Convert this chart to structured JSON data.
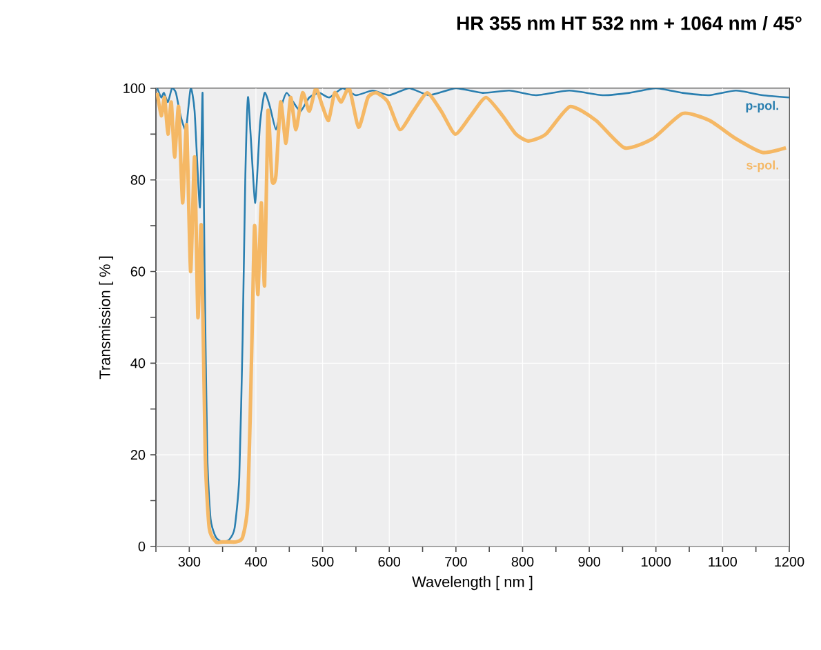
{
  "chart_data": {
    "type": "line",
    "title": "HR 355 nm HT 532 nm + 1064 nm / 45°",
    "xlabel": "Wavelength [ nm ]",
    "ylabel": "Transmission [ % ]",
    "xlim": [
      250,
      1200
    ],
    "ylim": [
      0,
      100
    ],
    "xticks": [
      {
        "value": 250,
        "label": null
      },
      300,
      {
        "value": 350,
        "label": null
      },
      400,
      {
        "value": 450,
        "label": null
      },
      500,
      {
        "value": 550,
        "label": null
      },
      600,
      {
        "value": 650,
        "label": null
      },
      700,
      {
        "value": 750,
        "label": null
      },
      800,
      {
        "value": 850,
        "label": null
      },
      900,
      {
        "value": 950,
        "label": null
      },
      1000,
      {
        "value": 1050,
        "label": null
      },
      1100,
      {
        "value": 1150,
        "label": null
      },
      1200
    ],
    "yticks": [
      0,
      {
        "value": 10,
        "label": null
      },
      20,
      {
        "value": 30,
        "label": null
      },
      40,
      {
        "value": 50,
        "label": null
      },
      60,
      {
        "value": 70,
        "label": null
      },
      80,
      {
        "value": 90,
        "label": null
      },
      100
    ],
    "grid": true,
    "marker": "none",
    "line_style": "solid",
    "series": [
      {
        "name": "p-pol.",
        "color": "#2a7fb0",
        "x": [
          252,
          258,
          262,
          268,
          274,
          280,
          287,
          295,
          302,
          308,
          316,
          320,
          323,
          327,
          332,
          340,
          350,
          360,
          368,
          375,
          380,
          384,
          388,
          392,
          399,
          406,
          413,
          421,
          430,
          438,
          446,
          456,
          467,
          480,
          495,
          510,
          530,
          550,
          575,
          600,
          630,
          660,
          700,
          740,
          780,
          820,
          870,
          920,
          960,
          1000,
          1040,
          1080,
          1120,
          1160,
          1200
        ],
        "values": [
          100,
          98,
          99,
          97,
          100,
          99,
          94,
          91,
          100,
          95,
          74,
          99,
          60,
          20,
          6,
          2,
          1,
          1.5,
          4,
          15,
          45,
          80,
          98,
          90,
          75,
          92,
          99,
          96,
          91,
          96,
          99,
          97,
          95,
          98,
          99,
          98,
          100,
          98.5,
          99.5,
          98.5,
          100,
          98.5,
          100,
          99,
          99.5,
          98.5,
          99.5,
          98.5,
          99,
          100,
          99,
          98.5,
          99.5,
          98.5,
          98
        ]
      },
      {
        "name": "s-pol.",
        "color": "#f5b865",
        "x": [
          252,
          258,
          263,
          268,
          273,
          278,
          284,
          290,
          296,
          302,
          308,
          313,
          318,
          324,
          330,
          340,
          350,
          360,
          370,
          380,
          388,
          394,
          398,
          403,
          408,
          413,
          418,
          424,
          430,
          437,
          445,
          452,
          460,
          470,
          480,
          490,
          500,
          509,
          518,
          528,
          540,
          554,
          568,
          581,
          598,
          616,
          636,
          657,
          678,
          699,
          722,
          745,
          770,
          790,
          809,
          835,
          871,
          910,
          953,
          995,
          1040,
          1080,
          1120,
          1160,
          1195
        ],
        "values": [
          99,
          94,
          98,
          90,
          97,
          85,
          96,
          75,
          92,
          60,
          85,
          50,
          70,
          20,
          4,
          1,
          1,
          1,
          1,
          2,
          10,
          45,
          70,
          55,
          75,
          57,
          95,
          80,
          81,
          97,
          88,
          98,
          91,
          99,
          95,
          100,
          96,
          93,
          99,
          97,
          100,
          91.5,
          98,
          99,
          97,
          91,
          95,
          99,
          95,
          90,
          94,
          98,
          94,
          90,
          88.5,
          90,
          96,
          93,
          87,
          89,
          94.5,
          93,
          89,
          86,
          87
        ]
      }
    ]
  }
}
